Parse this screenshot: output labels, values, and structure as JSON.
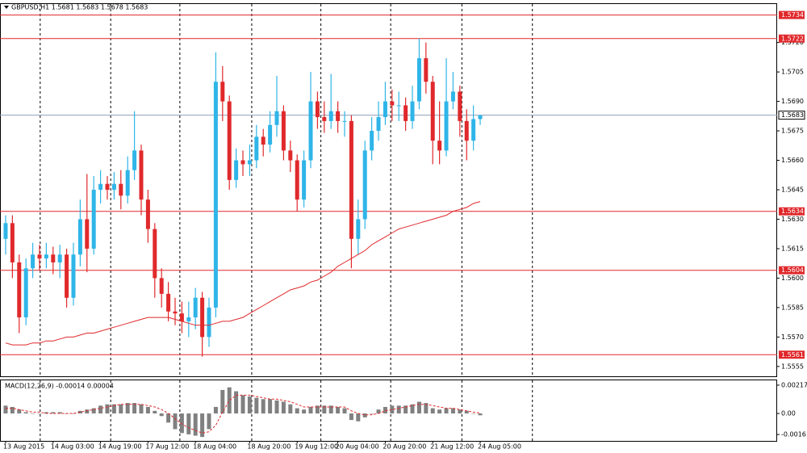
{
  "chart_data": [
    {
      "type": "candlestick",
      "title": "GBPUSD,H1  1.5681 1.5683 1.5678 1.5683",
      "up_color": "#2fb5e8",
      "down_color": "#e0292c",
      "open": [
        1.562,
        1.5628,
        1.5608,
        1.558,
        1.5605,
        1.5612,
        1.561,
        1.5612,
        1.5608,
        1.5612,
        1.559,
        1.5612,
        1.563,
        1.5615,
        1.5645,
        1.5648,
        1.5645,
        1.5648,
        1.5642,
        1.5655,
        1.5665,
        1.564,
        1.5625,
        1.56,
        1.5592,
        1.5583,
        1.5582,
        1.5578,
        1.558,
        1.559,
        1.557,
        1.5585,
        1.57,
        1.569,
        1.565,
        1.566,
        1.5658,
        1.566,
        1.5672,
        1.5668,
        1.5678,
        1.5685,
        1.5665,
        1.566,
        1.564,
        1.566,
        1.569,
        1.5682,
        1.568,
        1.5685,
        1.568,
        1.568,
        1.562,
        1.563,
        1.5665,
        1.5675,
        1.5682,
        1.569,
        1.5688,
        1.5688,
        1.568,
        1.569,
        1.5712,
        1.57,
        1.567,
        1.5665,
        1.569,
        1.5695,
        1.568,
        1.567,
        1.5681
      ],
      "high": [
        1.5632,
        1.5632,
        1.5612,
        1.561,
        1.5618,
        1.5617,
        1.5618,
        1.5616,
        1.5617,
        1.5615,
        1.5618,
        1.564,
        1.5653,
        1.5652,
        1.5655,
        1.5652,
        1.5654,
        1.5655,
        1.5662,
        1.5685,
        1.5668,
        1.5645,
        1.5628,
        1.5605,
        1.5598,
        1.559,
        1.5588,
        1.5588,
        1.5595,
        1.5593,
        1.559,
        1.5715,
        1.5708,
        1.5693,
        1.5666,
        1.5665,
        1.5668,
        1.5678,
        1.5676,
        1.5685,
        1.5703,
        1.5688,
        1.567,
        1.5663,
        1.5665,
        1.5705,
        1.5695,
        1.569,
        1.5704,
        1.569,
        1.5685,
        1.5683,
        1.564,
        1.567,
        1.5682,
        1.569,
        1.57,
        1.5696,
        1.5695,
        1.5692,
        1.5698,
        1.5722,
        1.572,
        1.5703,
        1.569,
        1.5712,
        1.5705,
        1.5698,
        1.5686,
        1.5688,
        1.5683
      ],
      "low": [
        1.5612,
        1.56,
        1.5572,
        1.5576,
        1.56,
        1.5604,
        1.5605,
        1.5602,
        1.56,
        1.5585,
        1.5586,
        1.5606,
        1.5603,
        1.5612,
        1.5638,
        1.564,
        1.564,
        1.5635,
        1.5638,
        1.565,
        1.5632,
        1.5618,
        1.559,
        1.5585,
        1.5578,
        1.5576,
        1.5572,
        1.557,
        1.5574,
        1.556,
        1.5565,
        1.558,
        1.568,
        1.5645,
        1.5646,
        1.5652,
        1.5652,
        1.5656,
        1.5662,
        1.5664,
        1.5672,
        1.566,
        1.5654,
        1.5634,
        1.5636,
        1.5656,
        1.5676,
        1.5674,
        1.5676,
        1.5674,
        1.5672,
        1.5605,
        1.5612,
        1.5625,
        1.566,
        1.567,
        1.5678,
        1.568,
        1.568,
        1.5675,
        1.5676,
        1.5686,
        1.5694,
        1.5658,
        1.5658,
        1.5662,
        1.5686,
        1.5672,
        1.566,
        1.5665,
        1.5678
      ],
      "close": [
        1.5628,
        1.5608,
        1.558,
        1.5605,
        1.5612,
        1.561,
        1.5612,
        1.5608,
        1.5612,
        1.559,
        1.5612,
        1.563,
        1.5615,
        1.5645,
        1.5648,
        1.5645,
        1.5648,
        1.5642,
        1.5655,
        1.5665,
        1.564,
        1.5625,
        1.56,
        1.5592,
        1.5583,
        1.5582,
        1.5578,
        1.558,
        1.559,
        1.557,
        1.5585,
        1.57,
        1.569,
        1.565,
        1.566,
        1.5658,
        1.566,
        1.5672,
        1.5668,
        1.5678,
        1.5685,
        1.5665,
        1.566,
        1.564,
        1.566,
        1.569,
        1.5682,
        1.568,
        1.5685,
        1.568,
        1.568,
        1.562,
        1.563,
        1.5665,
        1.5675,
        1.5682,
        1.569,
        1.5688,
        1.5688,
        1.568,
        1.569,
        1.5712,
        1.57,
        1.567,
        1.5665,
        1.569,
        1.5695,
        1.568,
        1.567,
        1.5681,
        1.5683
      ],
      "ma": {
        "color": "#e0292c",
        "values": [
          1.5567,
          1.5566,
          1.5566,
          1.5566,
          1.5567,
          1.5567,
          1.5568,
          1.5568,
          1.5569,
          1.557,
          1.557,
          1.5571,
          1.5572,
          1.5572,
          1.5573,
          1.5574,
          1.5575,
          1.5576,
          1.5577,
          1.5578,
          1.5579,
          1.558,
          1.558,
          1.558,
          1.558,
          1.5579,
          1.5578,
          1.5577,
          1.5576,
          1.5576,
          1.5576,
          1.5577,
          1.5578,
          1.5578,
          1.5579,
          1.558,
          1.5582,
          1.5584,
          1.5586,
          1.5588,
          1.559,
          1.5592,
          1.5594,
          1.5595,
          1.5596,
          1.5598,
          1.5599,
          1.5601,
          1.5603,
          1.5606,
          1.5608,
          1.561,
          1.5612,
          1.5614,
          1.5617,
          1.5619,
          1.5621,
          1.5623,
          1.5625,
          1.5626,
          1.5627,
          1.5628,
          1.5629,
          1.563,
          1.5631,
          1.5632,
          1.5634,
          1.5635,
          1.5636,
          1.5638,
          1.5639
        ]
      },
      "levels": [
        {
          "value": 1.5734,
          "color": "#e0292c"
        },
        {
          "value": 1.5722,
          "color": "#e0292c"
        },
        {
          "value": 1.5634,
          "color": "#e0292c"
        },
        {
          "value": 1.5604,
          "color": "#e0292c"
        },
        {
          "value": 1.5561,
          "color": "#e0292c"
        }
      ],
      "current_price": 1.5683,
      "xlim": [
        -0.83,
        113.8
      ],
      "ylim": [
        1.555,
        1.574
      ],
      "yticks": [
        {
          "value": 1.572,
          "label": "1.5720"
        },
        1.5705,
        {
          "value": 1.569,
          "label": "1.5690"
        },
        1.5675,
        {
          "value": 1.566,
          "label": "1.5660"
        },
        1.5645,
        {
          "value": 1.563,
          "label": "1.5630"
        },
        1.5615,
        {
          "value": 1.56,
          "label": "1.5600"
        },
        1.5585,
        {
          "value": 1.557,
          "label": "1.5570"
        },
        1.5555
      ],
      "xticks": [
        {
          "value": 0,
          "label": "13 Aug 2015"
        },
        {
          "value": 7,
          "label": "14 Aug 03:00"
        },
        {
          "value": 14,
          "label": "14 Aug 19:00"
        },
        {
          "value": 21,
          "label": "17 Aug 12:00"
        },
        {
          "value": 28,
          "label": "18 Aug 04:00"
        },
        {
          "value": 36,
          "label": "18 Aug 20:00"
        },
        {
          "value": 43,
          "label": "19 Aug 12:00"
        },
        {
          "value": 49,
          "label": "20 Aug 04:00"
        },
        {
          "value": 56,
          "label": "20 Aug 20:00"
        },
        {
          "value": 63,
          "label": "21 Aug 12:00"
        },
        {
          "value": 70,
          "label": "24 Aug 05:00"
        }
      ],
      "separators": [
        5.1,
        15.5,
        25.7,
        36.3,
        46.5,
        56.8,
        67.3,
        77.7
      ]
    },
    {
      "type": "macd",
      "title": "MACD(12,26,9) -0.00014 0.00004",
      "histogram": {
        "color": "#808080",
        "values": [
          0.0006,
          0.0005,
          0.0003,
          0.0001,
          0.0,
          0.0,
          0.0001,
          0.0001,
          0.0001,
          0.0,
          0.0,
          0.0002,
          0.0003,
          0.0004,
          0.0006,
          0.0007,
          0.0007,
          0.0007,
          0.0008,
          0.0008,
          0.0007,
          0.0005,
          0.0002,
          -0.0002,
          -0.0007,
          -0.0012,
          -0.0015,
          -0.0016,
          -0.0017,
          -0.0018,
          -0.0012,
          0.0005,
          0.0018,
          0.002,
          0.0017,
          0.0014,
          0.0013,
          0.0012,
          0.0011,
          0.0011,
          0.001,
          0.0009,
          0.0007,
          0.0004,
          0.0003,
          0.0005,
          0.0006,
          0.0006,
          0.0006,
          0.0005,
          0.0004,
          -0.0005,
          -0.0006,
          -0.0003,
          0.0,
          0.0003,
          0.0005,
          0.0006,
          0.0006,
          0.0006,
          0.0007,
          0.0009,
          0.0008,
          0.0004,
          0.0003,
          0.0004,
          0.0004,
          0.0003,
          0.0002,
          0.0,
          -0.00014
        ]
      },
      "signal": {
        "color": "#e0292c",
        "values": [
          0.0004,
          0.0004,
          0.0003,
          0.0002,
          0.0001,
          0.0001,
          0.0,
          0.0,
          0.0,
          0.0,
          0.0,
          0.0001,
          0.0002,
          0.0003,
          0.0004,
          0.0005,
          0.0006,
          0.0007,
          0.0007,
          0.0007,
          0.0007,
          0.0006,
          0.0005,
          0.0003,
          0.0,
          -0.0004,
          -0.0008,
          -0.0011,
          -0.0013,
          -0.0015,
          -0.0014,
          -0.0009,
          0.0001,
          0.001,
          0.0014,
          0.0014,
          0.0014,
          0.0013,
          0.0012,
          0.0011,
          0.0011,
          0.001,
          0.0009,
          0.0007,
          0.0005,
          0.0005,
          0.0005,
          0.0005,
          0.0005,
          0.0005,
          0.0005,
          0.0002,
          0.0,
          -0.0001,
          -0.0001,
          0.0,
          0.0002,
          0.0003,
          0.0004,
          0.0005,
          0.0006,
          0.0007,
          0.0007,
          0.0006,
          0.0005,
          0.0004,
          0.0004,
          0.0003,
          0.0002,
          0.0001,
          4e-05
        ]
      },
      "ylim": [
        -0.0021,
        0.0026
      ],
      "yticks": [
        0.00217,
        {
          "value": 0,
          "label": "0.00"
        },
        -0.00161
      ]
    }
  ]
}
